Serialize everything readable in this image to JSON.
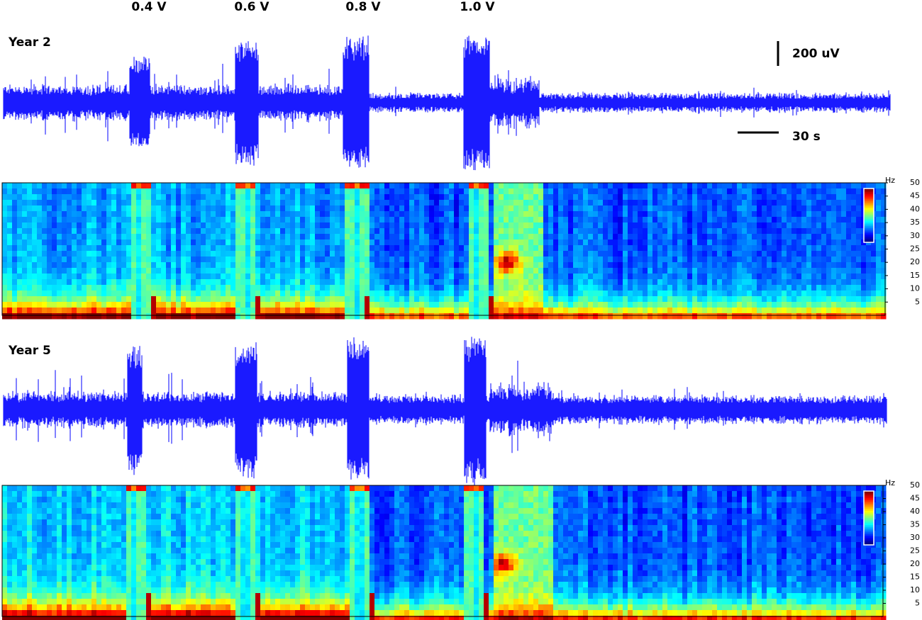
{
  "stimulus_labels": [
    "0.4 V",
    "0.6 V",
    "0.8 V",
    "1.0 V"
  ],
  "panels": [
    {
      "label": "Year 2",
      "scale_bar": {
        "amplitude": "200 uV",
        "time": "30 s"
      },
      "spectrogram": {
        "unit": "Hz",
        "ylim": [
          0,
          50
        ],
        "yticks": [
          5,
          10,
          15,
          20,
          25,
          30,
          35,
          40,
          45,
          50
        ]
      }
    },
    {
      "label": "Year 5",
      "spectrogram": {
        "unit": "Hz",
        "ylim": [
          0,
          50
        ],
        "yticks": [
          5,
          10,
          15,
          20,
          25,
          30,
          35,
          40,
          45,
          50
        ]
      }
    }
  ]
}
